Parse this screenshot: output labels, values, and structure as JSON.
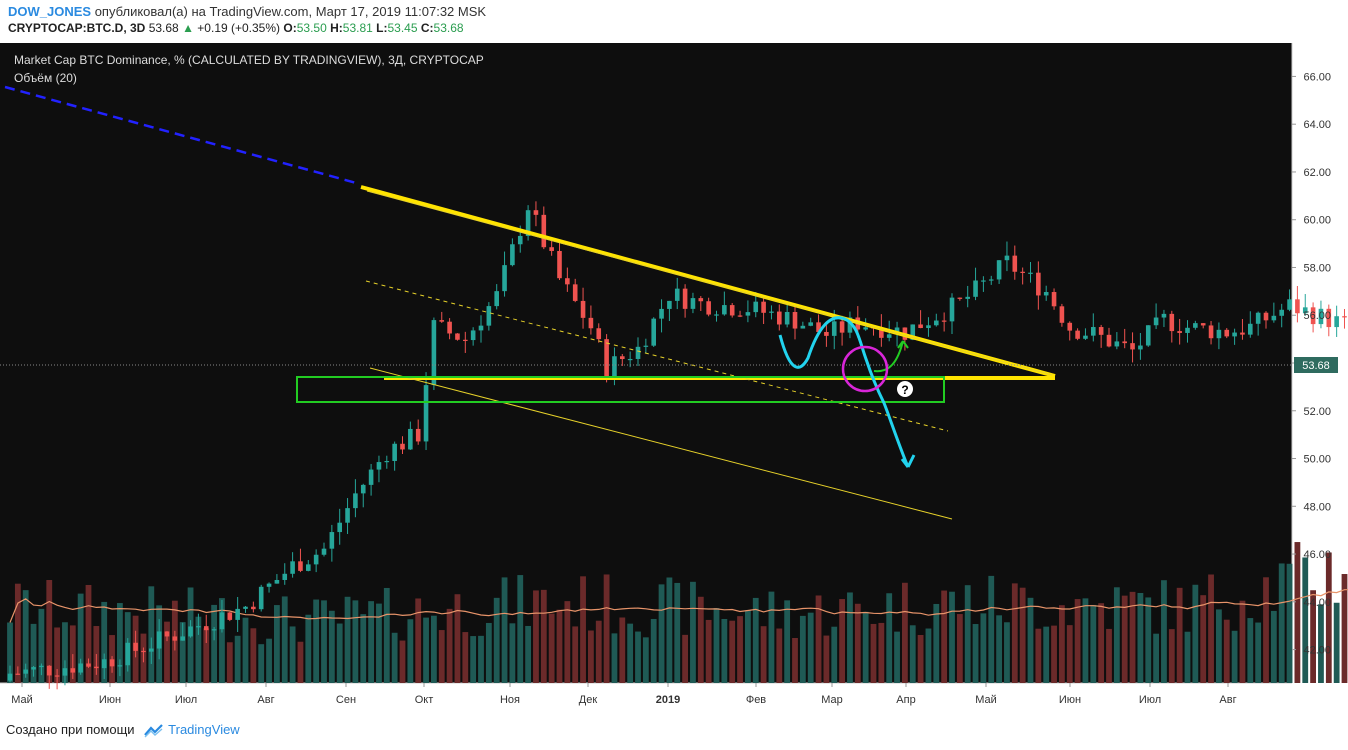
{
  "header": {
    "author": "DOW_JONES",
    "published_text": "опубликовал(а) на TradingView.com, Март 17, 2019 11:07:32 MSK",
    "symbol": "CRYPTOCAP:BTC.D, 3D",
    "last": "53.68",
    "change": "+0.19 (+0.35%)",
    "o_label": "O:",
    "o": "53.50",
    "h_label": "H:",
    "h": "53.81",
    "l_label": "L:",
    "l": "53.45",
    "c_label": "C:",
    "c": "53.68"
  },
  "chart_data": {
    "type": "candlestick",
    "title": "Market Cap BTC Dominance, % (CALCULATED BY TRADINGVIEW), 3Д, CRYPTOCAP",
    "volume_label": "Объём (20)",
    "price_tag": "53.68",
    "price_axis_ticks": [
      "66.00",
      "64.00",
      "62.00",
      "60.00",
      "58.00",
      "56.00",
      "54.00",
      "52.00",
      "50.00",
      "48.00",
      "46.00",
      "44.00",
      "42.00"
    ],
    "ylim": [
      40.6,
      67.4
    ],
    "time_axis_ticks": [
      "Май",
      "Июн",
      "Июл",
      "Авг",
      "Сен",
      "Окт",
      "Ноя",
      "Дек",
      "2019",
      "Фев",
      "Мар",
      "Апр",
      "Май",
      "Июн",
      "Июл",
      "Авг"
    ],
    "candle_close_path": [
      [
        0,
        41.0
      ],
      [
        12,
        41.5
      ],
      [
        20,
        42.5
      ],
      [
        30,
        43.8
      ],
      [
        36,
        45.5
      ],
      [
        40,
        46.2
      ],
      [
        44,
        48.5
      ],
      [
        48,
        50.3
      ],
      [
        52,
        51.0
      ],
      [
        54,
        55.5
      ],
      [
        58,
        55.0
      ],
      [
        62,
        56.8
      ],
      [
        66,
        60.6
      ],
      [
        70,
        57.5
      ],
      [
        74,
        55.5
      ],
      [
        76,
        53.8
      ],
      [
        80,
        54.6
      ],
      [
        84,
        56.9
      ],
      [
        88,
        56.5
      ],
      [
        94,
        56.3
      ],
      [
        100,
        55.8
      ],
      [
        104,
        55.2
      ],
      [
        108,
        55.7
      ],
      [
        114,
        55.3
      ],
      [
        118,
        56.0
      ],
      [
        121,
        56.5
      ],
      [
        124,
        57.3
      ],
      [
        127,
        58.2
      ],
      [
        132,
        57.0
      ],
      [
        135,
        55.5
      ],
      [
        138,
        55.2
      ],
      [
        143,
        54.5
      ],
      [
        147,
        55.8
      ],
      [
        150,
        55.5
      ],
      [
        155,
        55.3
      ],
      [
        158,
        55.5
      ],
      [
        163,
        56.4
      ],
      [
        170,
        55.6
      ],
      [
        176,
        54.3
      ],
      [
        180,
        54.9
      ],
      [
        183,
        54.0
      ],
      [
        185,
        53.68
      ]
    ],
    "volume_profile": [
      [
        0,
        0.55
      ],
      [
        40,
        0.45
      ],
      [
        60,
        0.55
      ],
      [
        70,
        0.58
      ],
      [
        100,
        0.5
      ],
      [
        120,
        0.58
      ],
      [
        150,
        0.55
      ],
      [
        165,
        0.75
      ],
      [
        176,
        0.95
      ],
      [
        185,
        0.95
      ]
    ],
    "trend_colors": {
      "up": "#26a69a",
      "down": "#ef5350",
      "vol_up": "#1f5a55",
      "vol_down": "#6b2a2a"
    }
  },
  "footer": {
    "created_with": "Создано при помощи",
    "brand": "TradingView"
  }
}
